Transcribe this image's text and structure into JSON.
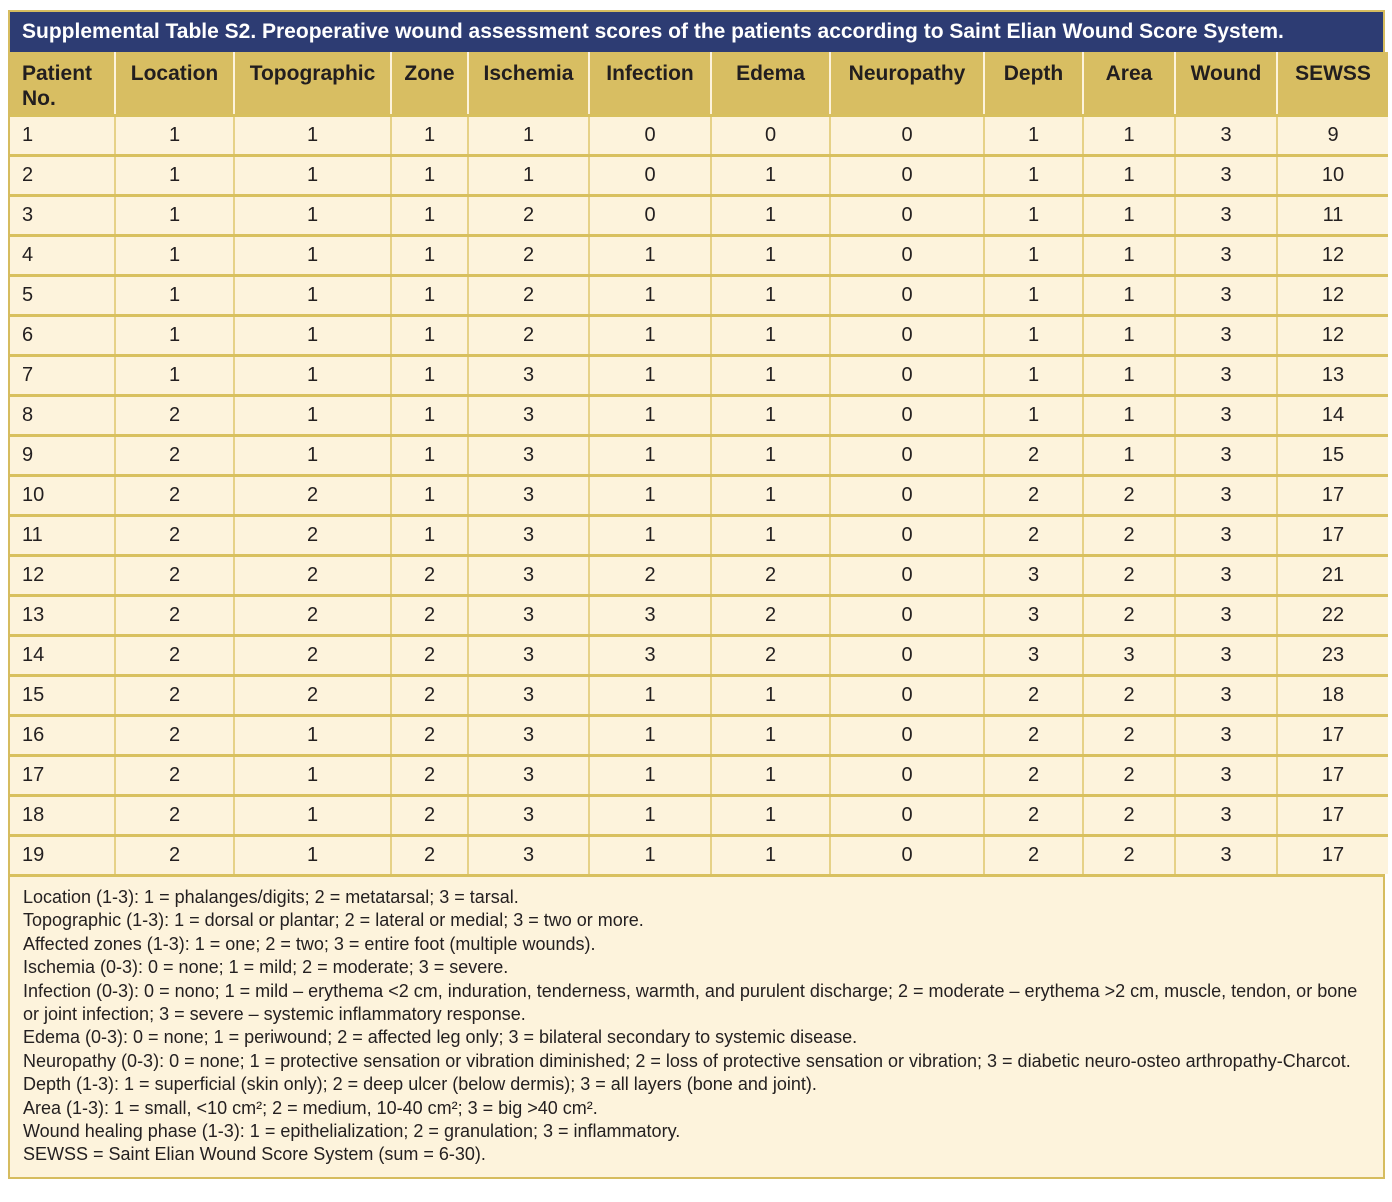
{
  "title": "Supplemental Table S2. Preoperative wound assessment scores of the patients according to Saint Elian Wound Score System.",
  "colors": {
    "title_bar_bg": "#2d3c73",
    "title_text": "#ffffff",
    "header_bg": "#d8be62",
    "cell_bg": "#fdf3dc",
    "border_gold": "#d6bc5f",
    "text": "#231f20"
  },
  "table": {
    "columns": [
      "Patient No.",
      "Location",
      "Topographic",
      "Zone",
      "Ischemia",
      "Infection",
      "Edema",
      "Neuropathy",
      "Depth",
      "Area",
      "Wound",
      "SEWSS"
    ],
    "rows": [
      [
        "1",
        "1",
        "1",
        "1",
        "1",
        "0",
        "0",
        "0",
        "1",
        "1",
        "3",
        "9"
      ],
      [
        "2",
        "1",
        "1",
        "1",
        "1",
        "0",
        "1",
        "0",
        "1",
        "1",
        "3",
        "10"
      ],
      [
        "3",
        "1",
        "1",
        "1",
        "2",
        "0",
        "1",
        "0",
        "1",
        "1",
        "3",
        "11"
      ],
      [
        "4",
        "1",
        "1",
        "1",
        "2",
        "1",
        "1",
        "0",
        "1",
        "1",
        "3",
        "12"
      ],
      [
        "5",
        "1",
        "1",
        "1",
        "2",
        "1",
        "1",
        "0",
        "1",
        "1",
        "3",
        "12"
      ],
      [
        "6",
        "1",
        "1",
        "1",
        "2",
        "1",
        "1",
        "0",
        "1",
        "1",
        "3",
        "12"
      ],
      [
        "7",
        "1",
        "1",
        "1",
        "3",
        "1",
        "1",
        "0",
        "1",
        "1",
        "3",
        "13"
      ],
      [
        "8",
        "2",
        "1",
        "1",
        "3",
        "1",
        "1",
        "0",
        "1",
        "1",
        "3",
        "14"
      ],
      [
        "9",
        "2",
        "1",
        "1",
        "3",
        "1",
        "1",
        "0",
        "2",
        "1",
        "3",
        "15"
      ],
      [
        "10",
        "2",
        "2",
        "1",
        "3",
        "1",
        "1",
        "0",
        "2",
        "2",
        "3",
        "17"
      ],
      [
        "11",
        "2",
        "2",
        "1",
        "3",
        "1",
        "1",
        "0",
        "2",
        "2",
        "3",
        "17"
      ],
      [
        "12",
        "2",
        "2",
        "2",
        "3",
        "2",
        "2",
        "0",
        "3",
        "2",
        "3",
        "21"
      ],
      [
        "13",
        "2",
        "2",
        "2",
        "3",
        "3",
        "2",
        "0",
        "3",
        "2",
        "3",
        "22"
      ],
      [
        "14",
        "2",
        "2",
        "2",
        "3",
        "3",
        "2",
        "0",
        "3",
        "3",
        "3",
        "23"
      ],
      [
        "15",
        "2",
        "2",
        "2",
        "3",
        "1",
        "1",
        "0",
        "2",
        "2",
        "3",
        "18"
      ],
      [
        "16",
        "2",
        "1",
        "2",
        "3",
        "1",
        "1",
        "0",
        "2",
        "2",
        "3",
        "17"
      ],
      [
        "17",
        "2",
        "1",
        "2",
        "3",
        "1",
        "1",
        "0",
        "2",
        "2",
        "3",
        "17"
      ],
      [
        "18",
        "2",
        "1",
        "2",
        "3",
        "1",
        "1",
        "0",
        "2",
        "2",
        "3",
        "17"
      ],
      [
        "19",
        "2",
        "1",
        "2",
        "3",
        "1",
        "1",
        "0",
        "2",
        "2",
        "3",
        "17"
      ]
    ]
  },
  "footnotes": [
    "Location (1-3): 1 = phalanges/digits; 2 = metatarsal; 3 = tarsal.",
    "Topographic (1-3): 1 = dorsal or plantar; 2 = lateral or medial; 3 = two or more.",
    "Affected zones (1-3): 1 = one; 2 = two; 3 = entire foot (multiple wounds).",
    "Ischemia (0-3): 0 = none; 1 = mild; 2 = moderate; 3 = severe.",
    "Infection (0-3): 0 = nono; 1 = mild – erythema <2 cm, induration, tenderness, warmth, and purulent discharge; 2 = moderate – erythema >2 cm, muscle, tendon, or bone or joint infection; 3 = severe – systemic inflammatory response.",
    "Edema (0-3): 0 = none; 1 = periwound; 2 = affected leg only; 3 = bilateral secondary to systemic disease.",
    "Neuropathy (0-3): 0 = none; 1 = protective sensation or vibration diminished; 2 = loss of protective sensation or vibration; 3 = diabetic neuro-osteo arthropathy-Charcot.",
    "Depth (1-3): 1 = superficial (skin only); 2 = deep ulcer (below dermis); 3 = all layers (bone and joint).",
    "Area (1-3): 1 = small, <10 cm²; 2 = medium, 10-40 cm²; 3 = big >40 cm².",
    "Wound healing phase (1-3): 1 = epithelialization; 2 = granulation; 3 = inflammatory.",
    "SEWSS = Saint Elian Wound Score System (sum = 6-30)."
  ]
}
